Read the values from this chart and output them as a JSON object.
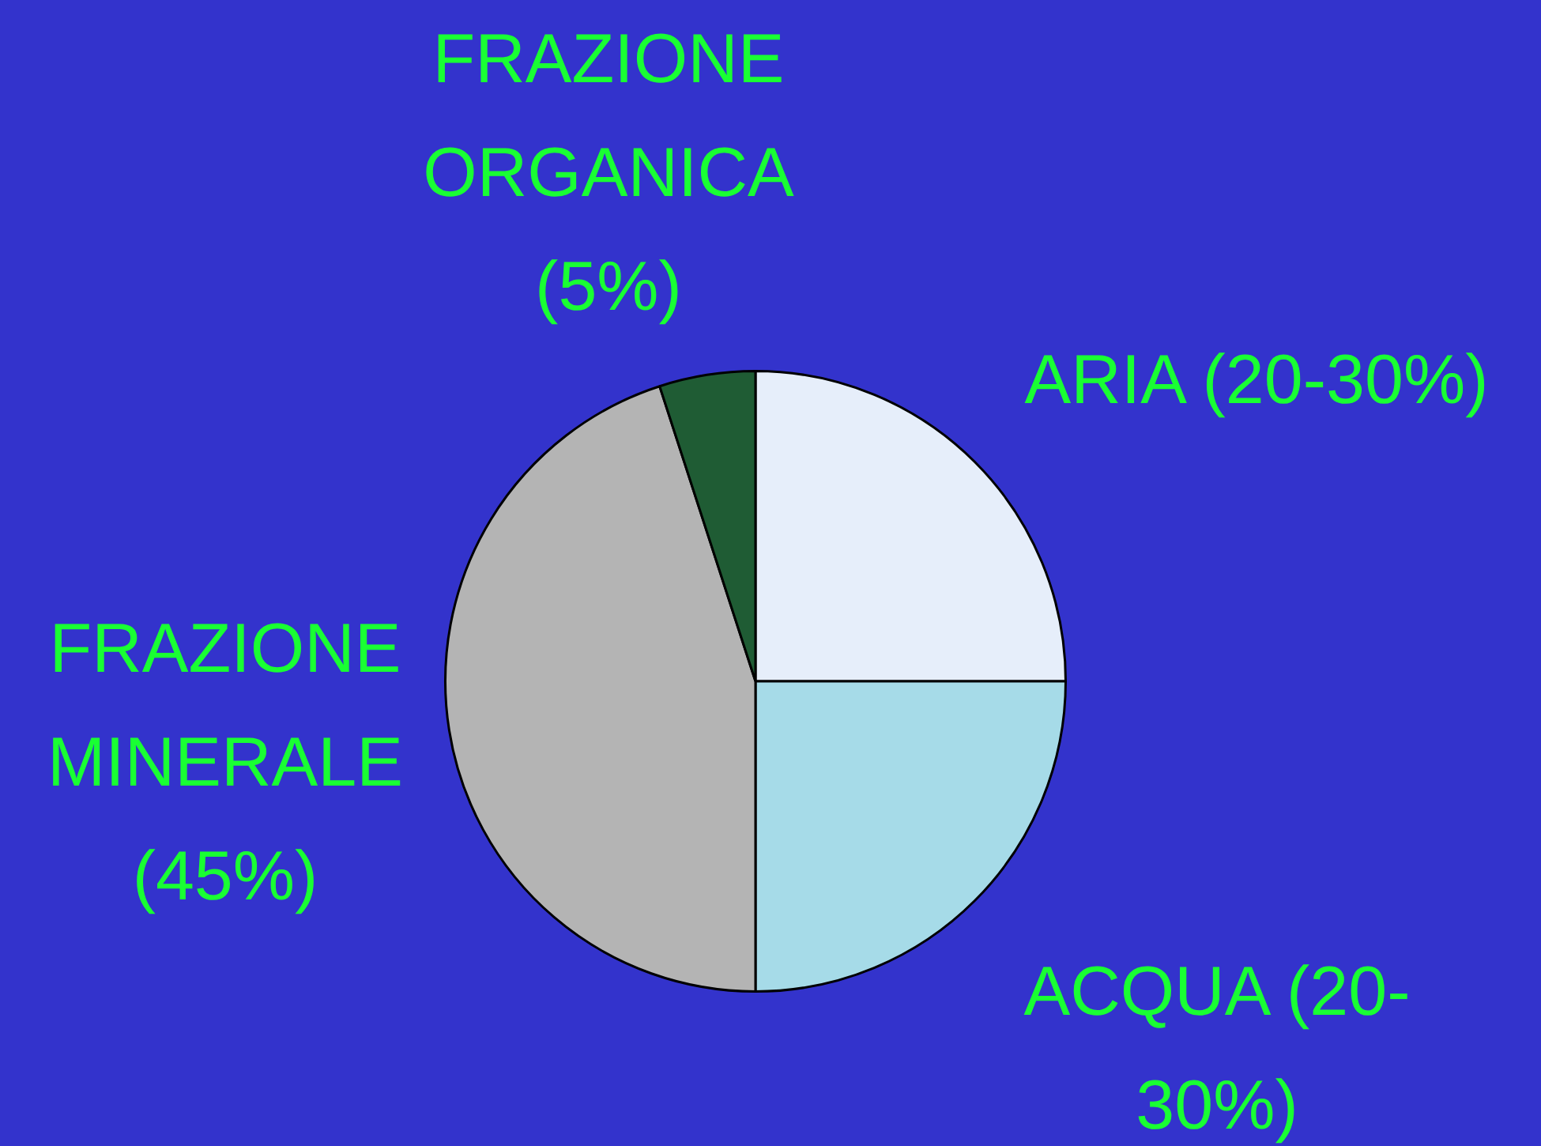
{
  "chart_data": {
    "type": "pie",
    "categories": [
      "ARIA (20-30%)",
      "ACQUA (20-30%)",
      "FRAZIONE MINERALE (45%)",
      "FRAZIONE ORGANICA (5%)"
    ],
    "values": [
      25,
      25,
      45,
      5
    ],
    "colors": [
      "#e6eefa",
      "#a6dbe8",
      "#b4b4b4",
      "#1f5c34"
    ],
    "legend": false
  }
}
